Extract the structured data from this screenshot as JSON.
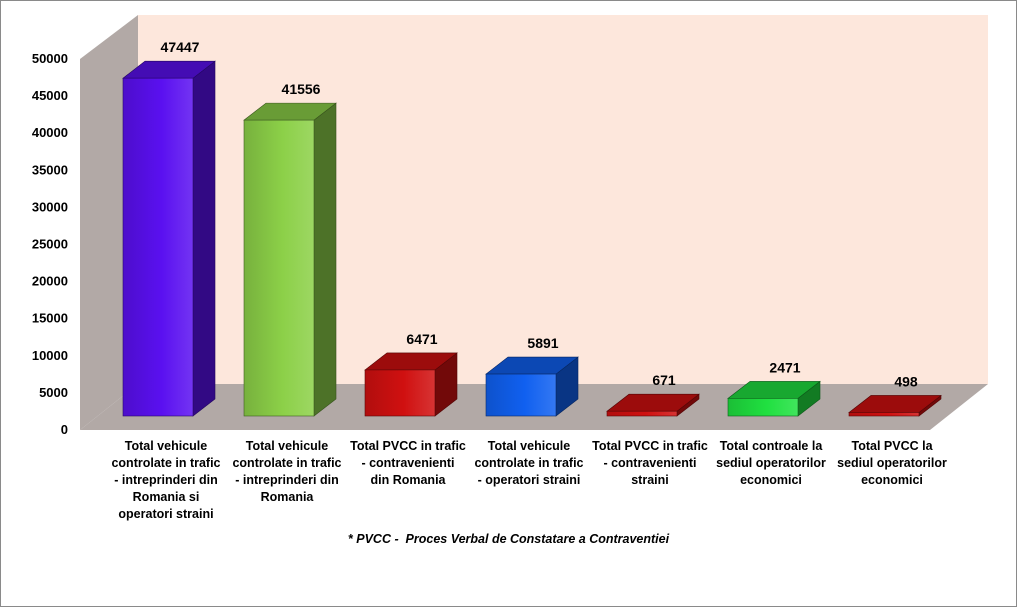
{
  "chart_data": {
    "type": "bar",
    "categories": [
      "Total vehicule controlate in trafic - intreprinderi din Romania si operatori straini",
      "Total vehicule controlate in trafic - intreprinderi din Romania",
      "Total PVCC in trafic -  contravenienti din Romania",
      "Total vehicule controlate in trafic - operatori straini",
      "Total PVCC in trafic - contravenienti straini",
      "Total controale la sediul operatorilor economici",
      "Total PVCC la sediul operatorilor economici"
    ],
    "category_lines": [
      "Total vehicule\ncontrolate in trafic\n- intreprinderi din\nRomania si\noperatori straini",
      "Total vehicule\ncontrolate in trafic\n- intreprinderi din\nRomania",
      "Total PVCC in trafic\n-  contravenienti\ndin Romania",
      "Total vehicule\ncontrolate in trafic\n- operatori straini",
      "Total PVCC in trafic\n- contravenienti\nstraini",
      "Total controale la\nsediul operatorilor\neconomici",
      "Total PVCC la\nsediul operatorilor\neconomici"
    ],
    "values": [
      47447,
      41556,
      6471,
      5891,
      671,
      2471,
      498
    ],
    "data_labels": [
      "47447",
      "41556",
      "6471",
      "5891",
      "671",
      "2471",
      "498"
    ],
    "colors": [
      "#5a10f0",
      "#8cd048",
      "#d01010",
      "#1060f0",
      "#d01010",
      "#20e040",
      "#d01010"
    ],
    "yticks": [
      "0",
      "5000",
      "10000",
      "15000",
      "20000",
      "25000",
      "30000",
      "35000",
      "40000",
      "45000",
      "50000"
    ],
    "ylim": [
      0,
      50000
    ],
    "title": "",
    "xlabel": "",
    "ylabel": "",
    "grid": false,
    "style": "3d-bar"
  },
  "footnote": "* PVCC -  Proces Verbal de Constatare a Contraventiei"
}
